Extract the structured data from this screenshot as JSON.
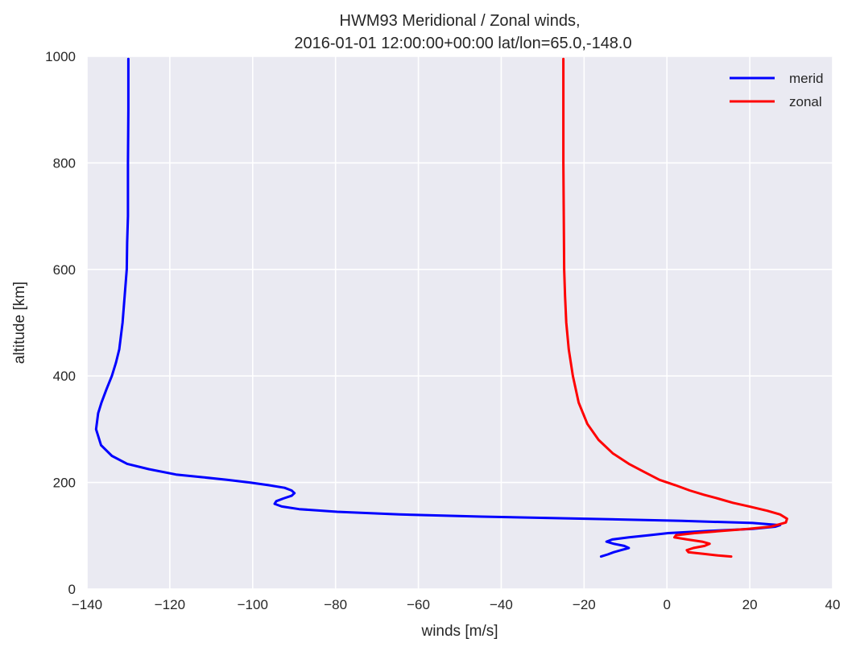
{
  "chart_data": {
    "type": "line",
    "title": "HWM93 Meridional / Zonal winds,",
    "subtitle": "2016-01-01 12:00:00+00:00 lat/lon=65.0,-148.0",
    "xlabel": "winds [m/s]",
    "ylabel": "altitude [km]",
    "xlim": [
      -140,
      40
    ],
    "ylim": [
      0,
      1000
    ],
    "xticks": [
      -140,
      -120,
      -100,
      -80,
      -60,
      -40,
      -20,
      0,
      20,
      40
    ],
    "yticks": [
      0,
      200,
      400,
      600,
      800,
      1000
    ],
    "grid": true,
    "legend": "top-right",
    "series": [
      {
        "name": "merid",
        "color": "#0000ff",
        "x": [
          -15.9,
          -14.3,
          -12.9,
          -11.1,
          -9.2,
          -10.3,
          -12.9,
          -14.6,
          -13.2,
          -9.2,
          -4.3,
          0.3,
          10.2,
          20.7,
          26.2,
          27.3,
          20.7,
          3.6,
          -19.9,
          -44.8,
          -64.6,
          -79.6,
          -88.8,
          -93.0,
          -94.7,
          -94.3,
          -92.6,
          -90.6,
          -89.9,
          -90.6,
          -92.3,
          -96.2,
          -100.7,
          -106.2,
          -112.2,
          -118.5,
          -125.1,
          -130.3,
          -134.0,
          -136.6,
          -137.8,
          -137.3,
          -136.5,
          -135.3,
          -134.0,
          -133.0,
          -132.2,
          -131.4,
          -130.9,
          -130.4,
          -130.3,
          -130.1,
          -130.1,
          -130.0,
          -130.0
        ],
        "y": [
          61,
          65,
          69,
          73,
          77,
          81,
          85,
          89,
          93,
          97,
          101,
          105,
          109,
          113,
          117,
          120,
          124,
          128,
          132,
          136,
          140,
          145,
          150,
          155,
          160,
          165,
          170,
          175,
          180,
          185,
          190,
          195,
          200,
          205,
          210,
          215,
          225,
          235,
          250,
          270,
          300,
          330,
          350,
          375,
          400,
          425,
          450,
          500,
          550,
          600,
          650,
          700,
          800,
          900,
          995
        ]
      },
      {
        "name": "zonal",
        "color": "#ff0000",
        "x": [
          15.5,
          12.3,
          8.8,
          5.2,
          4.8,
          6.4,
          9.1,
          10.3,
          8.5,
          4.9,
          1.8,
          2.2,
          6.7,
          13.3,
          19.6,
          25.1,
          28.7,
          29.0,
          27.3,
          24.2,
          19.9,
          15.9,
          12.3,
          8.9,
          5.5,
          2.0,
          -1.8,
          -5.5,
          -9.2,
          -13.1,
          -16.5,
          -19.2,
          -21.3,
          -22.7,
          -23.7,
          -24.3,
          -24.6,
          -24.8,
          -24.9,
          -25.0,
          -25.0
        ],
        "y": [
          61,
          63,
          66,
          69,
          73,
          77,
          81,
          85,
          89,
          93,
          97,
          101,
          105,
          109,
          113,
          117,
          125,
          132,
          140,
          147,
          155,
          162,
          170,
          177,
          185,
          195,
          205,
          220,
          235,
          255,
          280,
          310,
          350,
          400,
          450,
          500,
          550,
          600,
          700,
          800,
          995
        ]
      }
    ]
  }
}
